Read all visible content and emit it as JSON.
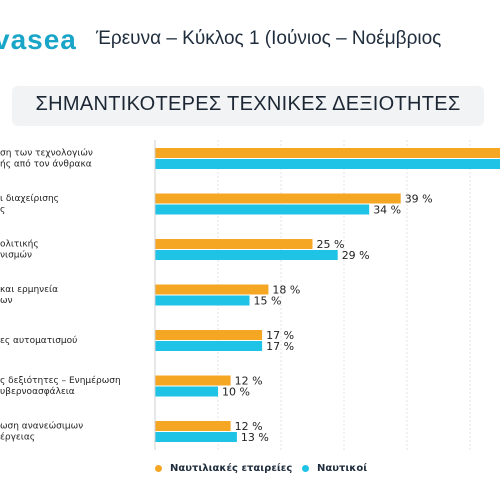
{
  "header": {
    "logo_text": "vasea",
    "title": "Έρευνα – Κύκλος 1 (Ιούνιος – Νοέμβριος"
  },
  "colors": {
    "series1": "#f5a623",
    "series2": "#1ec3e6",
    "logo": "#19a5c8"
  },
  "chart_data": {
    "type": "bar",
    "orientation": "horizontal",
    "title": "ΣΗΜΑΝΤΙΚΟΤΕΡΕΣ ΤΕΧΝΙΚΕΣ ΔΕΞΙΟΤΗΤΕΣ",
    "categories": [
      [
        "ση των τεχνολογιών",
        "ής από τον άνθρακα"
      ],
      [
        "ι διαχείρισης",
        "ς"
      ],
      [
        "ολιτικής",
        "νισμών"
      ],
      [
        "και ερμηνεία",
        "ων"
      ],
      [
        "ες αυτοματισμού"
      ],
      [
        "ς δεξιότητες – Ενημέρωση",
        "υβερνοασφάλεια"
      ],
      [
        "ωση ανανεώσιμων",
        "έργειας"
      ]
    ],
    "series": [
      {
        "name": "Ναυτιλιακές εταιρείες",
        "values": [
          null,
          39,
          25,
          18,
          17,
          12,
          12
        ],
        "labels": [
          "",
          "39 %",
          "25 %",
          "18 %",
          "17 %",
          "12 %",
          "12 %"
        ]
      },
      {
        "name": "Ναυτικοί",
        "values": [
          null,
          34,
          29,
          15,
          17,
          10,
          13
        ],
        "labels": [
          "",
          "34 %",
          "29 %",
          "15 %",
          "17 %",
          "10 %",
          "13 %"
        ]
      }
    ],
    "legend_position": "bottom"
  }
}
